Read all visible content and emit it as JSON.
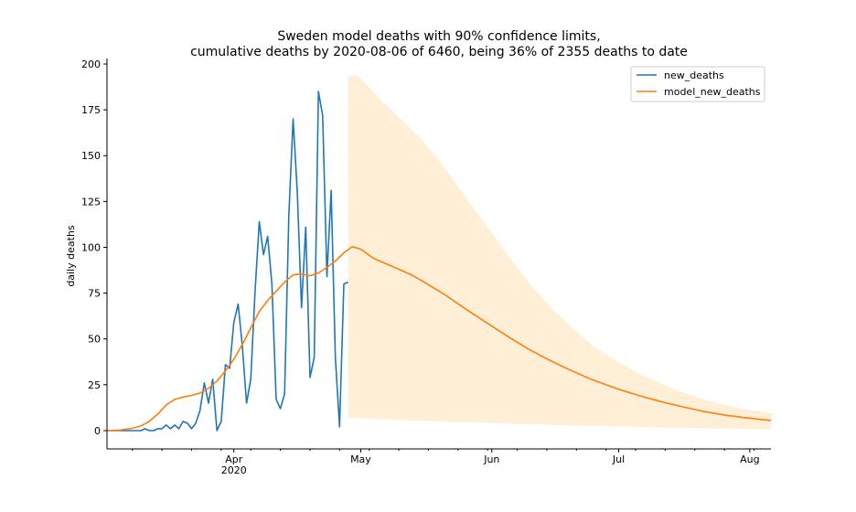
{
  "chart_data": {
    "type": "line",
    "title": "Sweden model deaths with 90% confidence limits,",
    "subtitle": "cumulative deaths by 2020-08-06 of 6460, being 36% of 2355 deaths to date",
    "xlabel": "",
    "ylabel": "daily deaths",
    "xlim": [
      "2020-03-02",
      "2020-08-06"
    ],
    "ylim": [
      -10,
      203
    ],
    "y_ticks": [
      0,
      25,
      50,
      75,
      100,
      125,
      150,
      175,
      200
    ],
    "x_ticks": [
      {
        "date": "2020-04-01",
        "label": "Apr",
        "sublabel": "2020"
      },
      {
        "date": "2020-05-01",
        "label": "May",
        "sublabel": ""
      },
      {
        "date": "2020-06-01",
        "label": "Jun",
        "sublabel": ""
      },
      {
        "date": "2020-07-01",
        "label": "Jul",
        "sublabel": ""
      },
      {
        "date": "2020-08-01",
        "label": "Aug",
        "sublabel": ""
      }
    ],
    "grid": false,
    "legend_position": "top-right",
    "series": [
      {
        "name": "new_deaths",
        "color": "#1f77b4",
        "points": [
          [
            "2020-03-02",
            0
          ],
          [
            "2020-03-03",
            0
          ],
          [
            "2020-03-04",
            0
          ],
          [
            "2020-03-05",
            0
          ],
          [
            "2020-03-06",
            0
          ],
          [
            "2020-03-07",
            0
          ],
          [
            "2020-03-08",
            0
          ],
          [
            "2020-03-09",
            0
          ],
          [
            "2020-03-10",
            0
          ],
          [
            "2020-03-11",
            1
          ],
          [
            "2020-03-12",
            0
          ],
          [
            "2020-03-13",
            0
          ],
          [
            "2020-03-14",
            1
          ],
          [
            "2020-03-15",
            1
          ],
          [
            "2020-03-16",
            3
          ],
          [
            "2020-03-17",
            1
          ],
          [
            "2020-03-18",
            3
          ],
          [
            "2020-03-19",
            1
          ],
          [
            "2020-03-20",
            5
          ],
          [
            "2020-03-21",
            4
          ],
          [
            "2020-03-22",
            1
          ],
          [
            "2020-03-23",
            4
          ],
          [
            "2020-03-24",
            11
          ],
          [
            "2020-03-25",
            26
          ],
          [
            "2020-03-26",
            15
          ],
          [
            "2020-03-27",
            28
          ],
          [
            "2020-03-28",
            0
          ],
          [
            "2020-03-29",
            5
          ],
          [
            "2020-03-30",
            36
          ],
          [
            "2020-03-31",
            34
          ],
          [
            "2020-04-01",
            59
          ],
          [
            "2020-04-02",
            69
          ],
          [
            "2020-04-03",
            46
          ],
          [
            "2020-04-04",
            15
          ],
          [
            "2020-04-05",
            28
          ],
          [
            "2020-04-06",
            75
          ],
          [
            "2020-04-07",
            114
          ],
          [
            "2020-04-08",
            96
          ],
          [
            "2020-04-09",
            106
          ],
          [
            "2020-04-10",
            80
          ],
          [
            "2020-04-11",
            17
          ],
          [
            "2020-04-12",
            12
          ],
          [
            "2020-04-13",
            20
          ],
          [
            "2020-04-14",
            117
          ],
          [
            "2020-04-15",
            170
          ],
          [
            "2020-04-16",
            130
          ],
          [
            "2020-04-17",
            67
          ],
          [
            "2020-04-18",
            111
          ],
          [
            "2020-04-19",
            29
          ],
          [
            "2020-04-20",
            40
          ],
          [
            "2020-04-21",
            185
          ],
          [
            "2020-04-22",
            172
          ],
          [
            "2020-04-23",
            84
          ],
          [
            "2020-04-24",
            131
          ],
          [
            "2020-04-25",
            40
          ],
          [
            "2020-04-26",
            2
          ],
          [
            "2020-04-27",
            80
          ],
          [
            "2020-04-28",
            81
          ]
        ]
      },
      {
        "name": "model_new_deaths",
        "color": "#ff7f0e",
        "points": [
          [
            "2020-03-02",
            0
          ],
          [
            "2020-03-05",
            0.3
          ],
          [
            "2020-03-08",
            1.2
          ],
          [
            "2020-03-10",
            2.5
          ],
          [
            "2020-03-12",
            5
          ],
          [
            "2020-03-14",
            9
          ],
          [
            "2020-03-16",
            14
          ],
          [
            "2020-03-18",
            17
          ],
          [
            "2020-03-20",
            18.3
          ],
          [
            "2020-03-22",
            19.2
          ],
          [
            "2020-03-24",
            20.5
          ],
          [
            "2020-03-26",
            23
          ],
          [
            "2020-03-28",
            27
          ],
          [
            "2020-03-30",
            32.5
          ],
          [
            "2020-04-01",
            39
          ],
          [
            "2020-04-03",
            47
          ],
          [
            "2020-04-05",
            56
          ],
          [
            "2020-04-07",
            65
          ],
          [
            "2020-04-09",
            71
          ],
          [
            "2020-04-11",
            76
          ],
          [
            "2020-04-13",
            81
          ],
          [
            "2020-04-15",
            85
          ],
          [
            "2020-04-17",
            85.5
          ],
          [
            "2020-04-19",
            84.5
          ],
          [
            "2020-04-21",
            86
          ],
          [
            "2020-04-23",
            89
          ],
          [
            "2020-04-25",
            92.5
          ],
          [
            "2020-04-27",
            97
          ],
          [
            "2020-04-29",
            100.3
          ],
          [
            "2020-05-01",
            99
          ],
          [
            "2020-05-04",
            94
          ],
          [
            "2020-05-07",
            91
          ],
          [
            "2020-05-10",
            88
          ],
          [
            "2020-05-13",
            85
          ],
          [
            "2020-05-16",
            81
          ],
          [
            "2020-05-21",
            74
          ],
          [
            "2020-05-26",
            66
          ],
          [
            "2020-05-31",
            58.5
          ],
          [
            "2020-06-05",
            51
          ],
          [
            "2020-06-10",
            44
          ],
          [
            "2020-06-15",
            38
          ],
          [
            "2020-06-20",
            32.5
          ],
          [
            "2020-06-25",
            27.5
          ],
          [
            "2020-07-01",
            22.5
          ],
          [
            "2020-07-06",
            19
          ],
          [
            "2020-07-11",
            15.8
          ],
          [
            "2020-07-16",
            13
          ],
          [
            "2020-07-21",
            10.5
          ],
          [
            "2020-07-26",
            8.5
          ],
          [
            "2020-07-31",
            7
          ],
          [
            "2020-08-06",
            5.5
          ]
        ]
      }
    ],
    "confidence_band": {
      "color": "#ffefd6",
      "upper": [
        [
          "2020-04-28",
          193
        ],
        [
          "2020-04-30",
          194
        ],
        [
          "2020-05-02",
          190
        ],
        [
          "2020-05-05",
          182
        ],
        [
          "2020-05-10",
          171
        ],
        [
          "2020-05-15",
          160
        ],
        [
          "2020-05-20",
          146
        ],
        [
          "2020-05-25",
          130
        ],
        [
          "2020-05-31",
          111
        ],
        [
          "2020-06-05",
          95
        ],
        [
          "2020-06-10",
          80
        ],
        [
          "2020-06-15",
          67
        ],
        [
          "2020-06-20",
          56
        ],
        [
          "2020-06-25",
          46
        ],
        [
          "2020-07-01",
          37
        ],
        [
          "2020-07-06",
          31
        ],
        [
          "2020-07-11",
          25.5
        ],
        [
          "2020-07-16",
          21
        ],
        [
          "2020-07-21",
          17
        ],
        [
          "2020-07-26",
          14
        ],
        [
          "2020-07-31",
          11.5
        ],
        [
          "2020-08-06",
          9.5
        ]
      ],
      "lower": [
        [
          "2020-04-28",
          7
        ],
        [
          "2020-05-05",
          6.3
        ],
        [
          "2020-05-15",
          5.4
        ],
        [
          "2020-05-25",
          4.6
        ],
        [
          "2020-06-05",
          3.8
        ],
        [
          "2020-06-15",
          3.1
        ],
        [
          "2020-06-25",
          2.5
        ],
        [
          "2020-07-05",
          2
        ],
        [
          "2020-07-15",
          1.5
        ],
        [
          "2020-07-25",
          1.1
        ],
        [
          "2020-08-06",
          0.7
        ]
      ]
    }
  }
}
